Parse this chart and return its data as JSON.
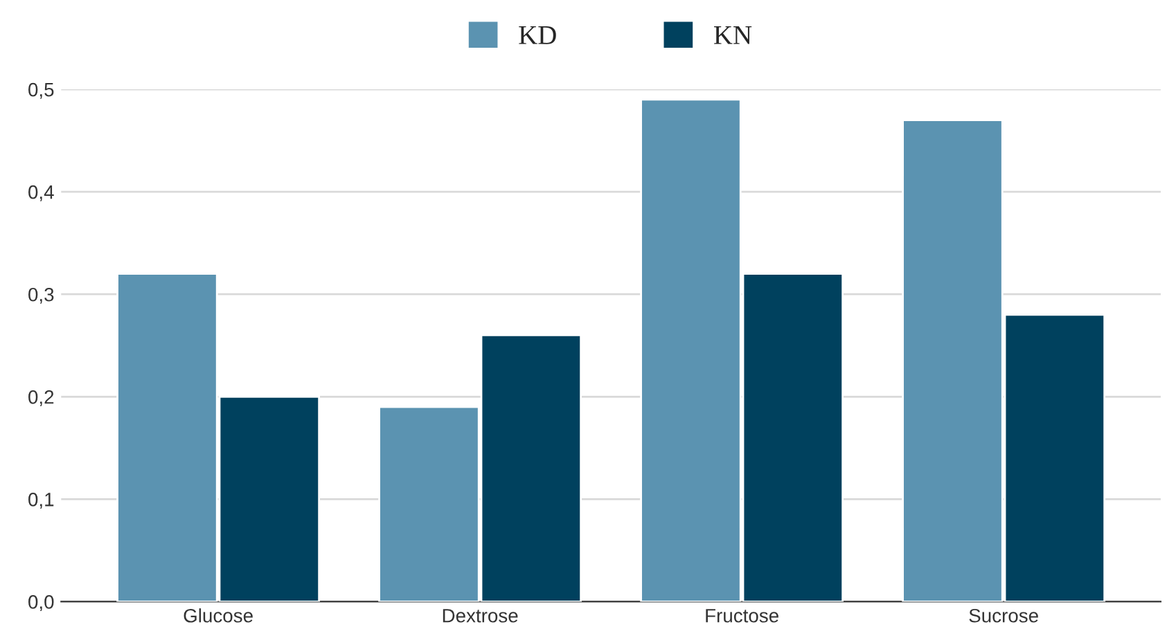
{
  "chart_data": {
    "type": "bar",
    "categories": [
      "Glucose",
      "Dextrose",
      "Fructose",
      "Sucrose"
    ],
    "series": [
      {
        "name": "KD",
        "color": "#5b93b1",
        "values": [
          0.32,
          0.19,
          0.49,
          0.47
        ]
      },
      {
        "name": "KN",
        "color": "#00415e",
        "values": [
          0.2,
          0.26,
          0.32,
          0.28
        ]
      }
    ],
    "ylim": [
      0,
      0.5
    ],
    "yticks": [
      {
        "value": 0,
        "label": "0,0"
      },
      {
        "value": 0.1,
        "label": "0,1"
      },
      {
        "value": 0.2,
        "label": "0,2"
      },
      {
        "value": 0.3,
        "label": "0,3"
      },
      {
        "value": 0.4,
        "label": "0,4"
      },
      {
        "value": 0.5,
        "label": "0,5"
      }
    ],
    "grid": "y",
    "legend": "top"
  }
}
